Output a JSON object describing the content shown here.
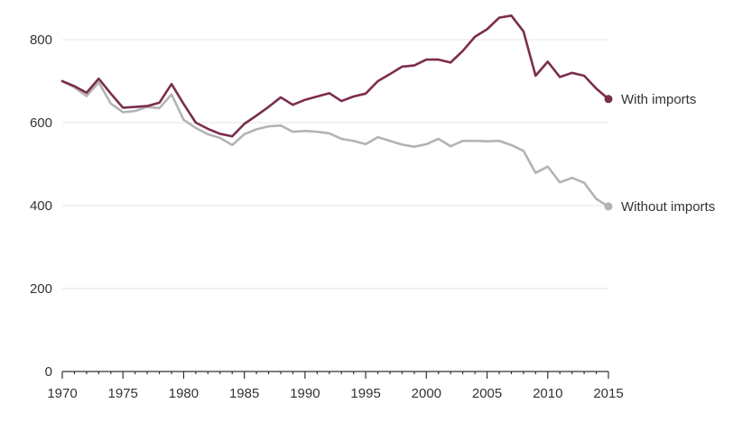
{
  "chart_data": {
    "type": "line",
    "title": "",
    "xlabel": "",
    "ylabel": "",
    "xlim": [
      1970,
      2015
    ],
    "ylim": [
      0,
      850
    ],
    "yticks": [
      0,
      200,
      400,
      600,
      800
    ],
    "xticks": [
      1970,
      1975,
      1980,
      1985,
      1990,
      1995,
      2000,
      2005,
      2010,
      2015
    ],
    "grid": true,
    "legend": "direct-labels-right",
    "x": [
      1970,
      1971,
      1972,
      1973,
      1974,
      1975,
      1976,
      1977,
      1978,
      1979,
      1980,
      1981,
      1982,
      1983,
      1984,
      1985,
      1986,
      1987,
      1988,
      1989,
      1990,
      1991,
      1992,
      1993,
      1994,
      1995,
      1996,
      1997,
      1998,
      1999,
      2000,
      2001,
      2002,
      2003,
      2004,
      2005,
      2006,
      2007,
      2008,
      2009,
      2010,
      2011,
      2012,
      2013,
      2014,
      2015
    ],
    "series": [
      {
        "name": "With imports",
        "color": "#7b2d4e",
        "values": [
          700,
          688,
          672,
          706,
          670,
          636,
          638,
          640,
          648,
          693,
          645,
          600,
          585,
          573,
          567,
          597,
          617,
          638,
          661,
          643,
          655,
          663,
          671,
          652,
          663,
          670,
          700,
          717,
          735,
          738,
          752,
          752,
          745,
          773,
          807,
          825,
          853,
          858,
          820,
          713,
          747,
          710,
          720,
          713,
          682,
          657
        ]
      },
      {
        "name": "Without imports",
        "color": "#b3b3b3",
        "values": [
          700,
          685,
          664,
          697,
          646,
          625,
          628,
          638,
          635,
          668,
          607,
          587,
          572,
          563,
          546,
          572,
          584,
          591,
          593,
          578,
          580,
          578,
          574,
          561,
          556,
          548,
          565,
          556,
          547,
          542,
          548,
          561,
          543,
          556,
          556,
          555,
          556,
          546,
          532,
          479,
          494,
          456,
          467,
          455,
          416,
          398
        ]
      }
    ]
  }
}
